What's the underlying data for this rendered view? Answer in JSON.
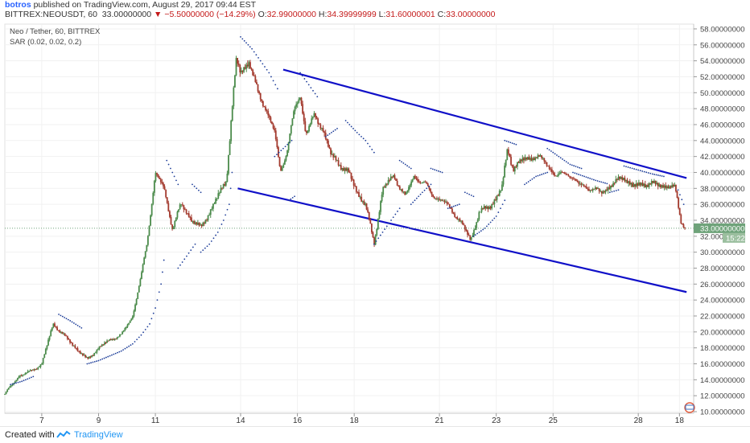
{
  "header": {
    "author": "botros",
    "published": "published on TradingView.com, August 29, 2017 09:44 EST",
    "symbol": "BITTREX:NEOUSDT, 60",
    "last": "33.00000000",
    "change": "−5.50000000 (−14.29%)",
    "o_label": "O:",
    "o_value": "32.99000000",
    "h_label": "H:",
    "h_value": "34.39999999",
    "l_label": "L:",
    "l_value": "31.60000001",
    "c_label": "C:",
    "c_value": "33.00000000"
  },
  "legend": {
    "line1": "Neo / Tether, 60, BITTREX",
    "line2": "SAR (0.02, 0.02, 0.2)"
  },
  "footer": {
    "created": "Created with",
    "brand": "TradingView"
  },
  "colors": {
    "up": "#4b8b4b",
    "down": "#a33a2e",
    "sar": "#1f3f9a",
    "trend": "#1010c8",
    "price_label_bg": "#6fa37a",
    "time_label_bg": "#9bbf9f"
  },
  "chart_data": {
    "type": "candlestick",
    "y_axis": {
      "range": [
        9.8,
        58.6
      ],
      "ticks": [
        "10.00000000",
        "12.00000000",
        "14.00000000",
        "16.00000000",
        "18.00000000",
        "20.00000000",
        "22.00000000",
        "24.00000000",
        "26.00000000",
        "28.00000000",
        "30.00000000",
        "32.00000000",
        "34.00000000",
        "36.00000000",
        "38.00000000",
        "40.00000000",
        "42.00000000",
        "44.00000000",
        "46.00000000",
        "48.00000000",
        "50.00000000",
        "52.00000000",
        "54.00000000",
        "56.00000000",
        "58.00000000"
      ],
      "tick_values": [
        10,
        12,
        14,
        16,
        18,
        20,
        22,
        24,
        26,
        28,
        30,
        32,
        34,
        36,
        38,
        40,
        42,
        44,
        46,
        48,
        50,
        52,
        54,
        56,
        58
      ]
    },
    "x_axis": {
      "labels": [
        "7",
        "9",
        "11",
        "14",
        "16",
        "18",
        "21",
        "23",
        "25",
        "28",
        "18"
      ],
      "label_positions": [
        1.3,
        3.3,
        5.3,
        8.3,
        10.3,
        12.3,
        15.3,
        17.3,
        19.3,
        22.3,
        23.75
      ],
      "range": [
        0,
        24.25
      ]
    },
    "last_price": 33.0,
    "last_price_label": "33.00000000",
    "countdown_label": "15:22",
    "trend_lines": [
      {
        "x1": 9.8,
        "y1": 52.9,
        "x2": 24.0,
        "y2": 39.3
      },
      {
        "x1": 8.2,
        "y1": 38.0,
        "x2": 24.0,
        "y2": 25.0
      }
    ],
    "price_path": [
      [
        0.0,
        12.2
      ],
      [
        0.5,
        14.5
      ],
      [
        0.9,
        15.0
      ],
      [
        1.3,
        16.0
      ],
      [
        1.7,
        21.0
      ],
      [
        2.1,
        19.5
      ],
      [
        2.5,
        18.0
      ],
      [
        2.9,
        16.5
      ],
      [
        3.3,
        18.0
      ],
      [
        3.7,
        19.0
      ],
      [
        4.1,
        19.6
      ],
      [
        4.5,
        22.0
      ],
      [
        4.8,
        27.0
      ],
      [
        5.0,
        31.0
      ],
      [
        5.3,
        40.0
      ],
      [
        5.6,
        38.0
      ],
      [
        5.9,
        33.0
      ],
      [
        6.2,
        36.0
      ],
      [
        6.6,
        34.0
      ],
      [
        6.9,
        33.0
      ],
      [
        7.2,
        35.0
      ],
      [
        7.5,
        37.0
      ],
      [
        7.8,
        39.0
      ],
      [
        8.0,
        48.0
      ],
      [
        8.15,
        54.0
      ],
      [
        8.3,
        52.5
      ],
      [
        8.6,
        54.0
      ],
      [
        8.9,
        50.0
      ],
      [
        9.2,
        48.0
      ],
      [
        9.5,
        45.0
      ],
      [
        9.7,
        40.0
      ],
      [
        9.95,
        43.0
      ],
      [
        10.2,
        48.0
      ],
      [
        10.4,
        49.5
      ],
      [
        10.6,
        45.0
      ],
      [
        10.9,
        47.0
      ],
      [
        11.2,
        45.5
      ],
      [
        11.5,
        42.0
      ],
      [
        11.8,
        41.0
      ],
      [
        12.1,
        40.0
      ],
      [
        12.4,
        37.5
      ],
      [
        12.7,
        36.0
      ],
      [
        13.0,
        31.0
      ],
      [
        13.3,
        38.0
      ],
      [
        13.7,
        39.5
      ],
      [
        14.1,
        37.0
      ],
      [
        14.4,
        39.5
      ],
      [
        14.8,
        38.5
      ],
      [
        15.1,
        37.0
      ],
      [
        15.4,
        36.5
      ],
      [
        15.8,
        35.0
      ],
      [
        16.1,
        33.5
      ],
      [
        16.4,
        31.5
      ],
      [
        16.7,
        35.0
      ],
      [
        17.1,
        35.8
      ],
      [
        17.5,
        38.0
      ],
      [
        17.7,
        43.0
      ],
      [
        17.9,
        40.5
      ],
      [
        18.2,
        41.5
      ],
      [
        18.6,
        42.0
      ],
      [
        19.0,
        41.5
      ],
      [
        19.4,
        39.5
      ],
      [
        19.8,
        40.0
      ],
      [
        20.2,
        38.5
      ],
      [
        20.6,
        38.0
      ],
      [
        21.0,
        37.5
      ],
      [
        21.4,
        38.5
      ],
      [
        21.8,
        39.5
      ],
      [
        22.1,
        38.2
      ],
      [
        22.5,
        38.6
      ],
      [
        22.9,
        38.5
      ],
      [
        23.3,
        38.3
      ],
      [
        23.6,
        38.0
      ],
      [
        23.8,
        34.0
      ],
      [
        23.95,
        33.0
      ]
    ],
    "sar_segments": [
      [
        [
          0.2,
          13.4
        ],
        [
          0.6,
          13.8
        ],
        [
          1.0,
          14.4
        ]
      ],
      [
        [
          1.9,
          22.2
        ],
        [
          2.3,
          21.4
        ],
        [
          2.7,
          20.5
        ]
      ],
      [
        [
          2.9,
          16.0
        ],
        [
          3.3,
          16.4
        ],
        [
          3.7,
          17.0
        ],
        [
          4.1,
          17.6
        ],
        [
          4.5,
          18.5
        ],
        [
          4.8,
          19.6
        ],
        [
          5.1,
          21.0
        ],
        [
          5.3,
          23.0
        ],
        [
          5.5,
          26.0
        ],
        [
          5.6,
          29.0
        ]
      ],
      [
        [
          5.7,
          41.5
        ],
        [
          5.9,
          40.0
        ],
        [
          6.1,
          38.5
        ]
      ],
      [
        [
          6.1,
          28.0
        ],
        [
          6.4,
          29.5
        ],
        [
          6.7,
          31.0
        ]
      ],
      [
        [
          6.6,
          38.5
        ],
        [
          6.9,
          37.5
        ]
      ],
      [
        [
          6.9,
          30.0
        ],
        [
          7.2,
          31.0
        ],
        [
          7.5,
          32.5
        ],
        [
          7.7,
          34.0
        ],
        [
          7.9,
          36.0
        ],
        [
          8.0,
          40.0
        ]
      ],
      [
        [
          8.3,
          57.0
        ],
        [
          8.7,
          55.5
        ],
        [
          9.0,
          54.0
        ],
        [
          9.3,
          52.5
        ],
        [
          9.6,
          50.5
        ]
      ],
      [
        [
          9.5,
          42.0
        ],
        [
          9.8,
          43.0
        ],
        [
          10.1,
          44.0
        ]
      ],
      [
        [
          10.4,
          52.5
        ],
        [
          10.7,
          51.0
        ],
        [
          11.0,
          49.5
        ]
      ],
      [
        [
          10.0,
          36.5
        ],
        [
          10.2,
          37.0
        ]
      ],
      [
        [
          11.3,
          44.5
        ],
        [
          11.7,
          45.5
        ]
      ],
      [
        [
          12.0,
          46.5
        ],
        [
          12.4,
          45.0
        ],
        [
          12.7,
          44.0
        ],
        [
          13.0,
          42.5
        ]
      ],
      [
        [
          13.0,
          31.0
        ],
        [
          13.3,
          32.5
        ],
        [
          13.6,
          34.0
        ],
        [
          13.9,
          35.5
        ]
      ],
      [
        [
          13.9,
          41.5
        ],
        [
          14.3,
          40.5
        ]
      ],
      [
        [
          14.3,
          36.0
        ],
        [
          14.7,
          37.5
        ],
        [
          15.0,
          38.5
        ]
      ],
      [
        [
          15.0,
          40.5
        ],
        [
          15.4,
          40.0
        ]
      ],
      [
        [
          15.6,
          35.5
        ],
        [
          16.0,
          36.0
        ]
      ],
      [
        [
          16.2,
          37.5
        ],
        [
          16.5,
          37.0
        ]
      ],
      [
        [
          16.5,
          32.0
        ],
        [
          16.9,
          33.0
        ],
        [
          17.3,
          34.5
        ],
        [
          17.6,
          36.5
        ]
      ],
      [
        [
          17.6,
          44.0
        ],
        [
          18.0,
          43.5
        ]
      ],
      [
        [
          18.3,
          38.5
        ],
        [
          18.7,
          39.5
        ],
        [
          19.1,
          40.0
        ]
      ],
      [
        [
          19.1,
          43.0
        ],
        [
          19.5,
          42.0
        ],
        [
          19.9,
          41.0
        ],
        [
          20.3,
          40.5
        ]
      ],
      [
        [
          20.0,
          40.0
        ],
        [
          20.4,
          39.5
        ],
        [
          20.8,
          39.0
        ],
        [
          21.2,
          38.6
        ]
      ],
      [
        [
          21.3,
          37.5
        ],
        [
          21.6,
          37.8
        ]
      ],
      [
        [
          21.8,
          40.8
        ],
        [
          22.3,
          40.3
        ],
        [
          22.8,
          39.8
        ],
        [
          23.2,
          39.5
        ]
      ],
      [
        [
          23.7,
          37.8
        ],
        [
          23.9,
          36.0
        ]
      ]
    ]
  }
}
